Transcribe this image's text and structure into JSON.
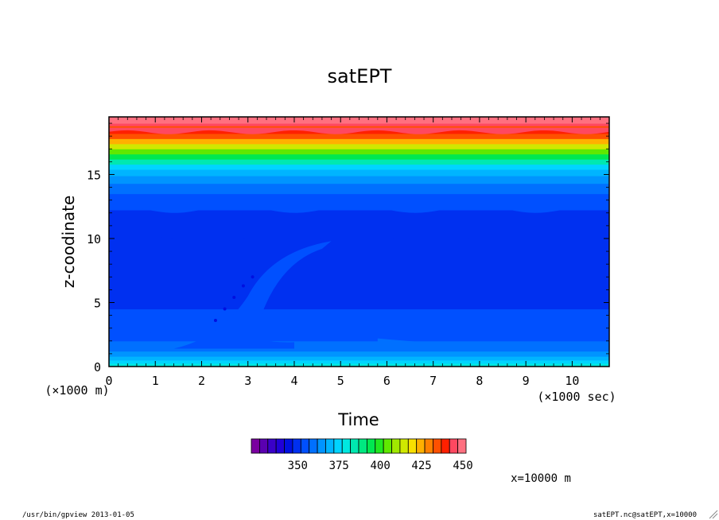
{
  "chart_data": {
    "type": "heatmap",
    "title": "satEPT",
    "xlabel": "Time",
    "ylabel": "z-coodinate",
    "x_unit_label": "(×1000 sec)",
    "y_unit_label": "(×1000 m)",
    "xlim": [
      0,
      10.8
    ],
    "ylim": [
      0,
      19.5
    ],
    "x_ticks": [
      "0",
      "1",
      "2",
      "3",
      "4",
      "5",
      "6",
      "7",
      "8",
      "9",
      "10"
    ],
    "y_ticks": [
      "0",
      "5",
      "10",
      "15"
    ],
    "colorbar": {
      "tick_labels": [
        "350",
        "375",
        "400",
        "425",
        "450"
      ],
      "levels": [
        320,
        325,
        330,
        335,
        340,
        345,
        350,
        355,
        360,
        365,
        370,
        375,
        380,
        385,
        390,
        395,
        400,
        405,
        410,
        415,
        420,
        425,
        430,
        435,
        440,
        445,
        450
      ],
      "colors": [
        "#7a00a0",
        "#5a00b0",
        "#3a00c8",
        "#2000d8",
        "#0010e0",
        "#0030f0",
        "#0050ff",
        "#0070ff",
        "#0094ff",
        "#00b4ff",
        "#00d4ff",
        "#00e8e0",
        "#00e8b0",
        "#00e880",
        "#00e850",
        "#20e820",
        "#60e800",
        "#a0e800",
        "#d0e800",
        "#f8e000",
        "#ffb000",
        "#ff8000",
        "#ff5000",
        "#ff2000",
        "#ff4860",
        "#ff7080"
      ]
    },
    "vertical_bands": [
      {
        "z": [
          0.0,
          0.25
        ],
        "value": 375
      },
      {
        "z": [
          0.25,
          0.5
        ],
        "value": 370
      },
      {
        "z": [
          0.5,
          0.8
        ],
        "value": 365
      },
      {
        "z": [
          0.8,
          1.2
        ],
        "value": 360
      },
      {
        "z": [
          1.2,
          2.0
        ],
        "value": 355
      },
      {
        "z": [
          2.0,
          4.5
        ],
        "value": 350
      },
      {
        "z": [
          4.5,
          10.0
        ],
        "value": 345
      },
      {
        "z": [
          10.0,
          12.0
        ],
        "value": 345
      },
      {
        "z": [
          12.0,
          13.5
        ],
        "value": 350
      },
      {
        "z": [
          13.5,
          14.3
        ],
        "value": 355
      },
      {
        "z": [
          14.3,
          14.9
        ],
        "value": 360
      },
      {
        "z": [
          14.9,
          15.4
        ],
        "value": 365
      },
      {
        "z": [
          15.4,
          15.8
        ],
        "value": 370
      },
      {
        "z": [
          15.8,
          16.2
        ],
        "value": 380
      },
      {
        "z": [
          16.2,
          16.6
        ],
        "value": 390
      },
      {
        "z": [
          16.6,
          17.0
        ],
        "value": 400
      },
      {
        "z": [
          17.0,
          17.4
        ],
        "value": 410
      },
      {
        "z": [
          17.4,
          17.8
        ],
        "value": 420
      },
      {
        "z": [
          17.8,
          18.2
        ],
        "value": 430
      },
      {
        "z": [
          18.2,
          18.5
        ],
        "value": 435
      },
      {
        "z": [
          18.5,
          18.8
        ],
        "value": 430
      },
      {
        "z": [
          18.8,
          19.0
        ],
        "value": 440
      },
      {
        "z": [
          19.0,
          19.5
        ],
        "value": 445
      }
    ],
    "annotations": {
      "slice": "x=10000 m",
      "footer_left": "/usr/bin/gpview  2013-01-05",
      "footer_right": "satEPT.nc@satEPT,x=10000"
    }
  }
}
